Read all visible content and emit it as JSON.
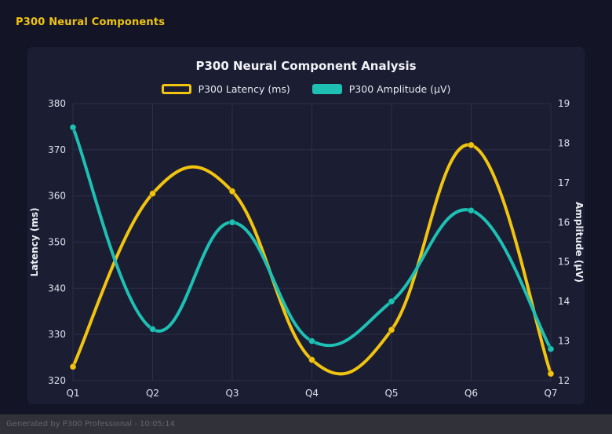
{
  "page": {
    "title": "P300 Neural Components",
    "footer": "Generated by P300 Professional - 10:05:14"
  },
  "colors": {
    "background": "#131527",
    "panel": "#1b1d33",
    "grid": "#2c2f49",
    "tick_text": "#dde0ea",
    "title_text": "#f2f3f7",
    "accent_yellow": "#f1c40f",
    "accent_teal": "#1dc0b3",
    "footer_bg": "#313139",
    "footer_text": "#63646d"
  },
  "chart_data": {
    "type": "line",
    "title": "P300 Neural Component Analysis",
    "categories": [
      "Q1",
      "Q2",
      "Q3",
      "Q4",
      "Q5",
      "Q6",
      "Q7"
    ],
    "series": [
      {
        "name": "P300 Latency (ms)",
        "axis": "left",
        "color": "#f1c40f",
        "swatch": "outline",
        "values": [
          323,
          360.5,
          361,
          324.5,
          331,
          371,
          321.5
        ]
      },
      {
        "name": "P300 Amplitude (μV)",
        "axis": "right",
        "color": "#1dc0b3",
        "swatch": "solid",
        "values": [
          18.4,
          13.3,
          16.0,
          13.0,
          14.0,
          16.3,
          12.8
        ]
      }
    ],
    "left_axis": {
      "label": "Latency (ms)",
      "min": 320,
      "max": 380,
      "step": 10
    },
    "right_axis": {
      "label": "Amplitude (μV)",
      "min": 12,
      "max": 19,
      "step": 1
    },
    "legend_position": "top",
    "grid": true,
    "smooth": true,
    "line_tension": 0.4
  }
}
